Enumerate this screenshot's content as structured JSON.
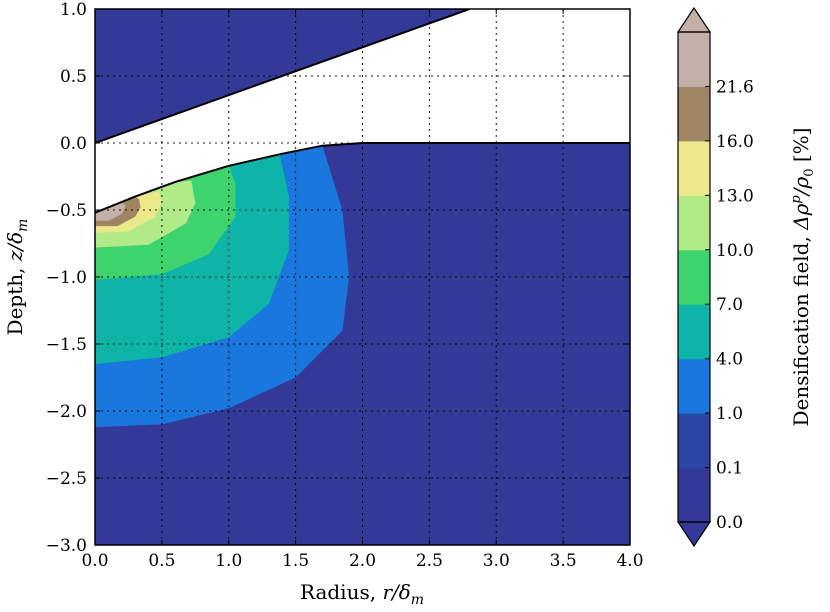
{
  "chart_data": {
    "type": "contour",
    "xlabel": "Radius, r/δm",
    "ylabel": "Depth, z/δm",
    "xlim": [
      0.0,
      4.0
    ],
    "ylim": [
      -3.0,
      1.0
    ],
    "xticks": [
      "0.0",
      "0.5",
      "1.0",
      "1.5",
      "2.0",
      "2.5",
      "3.0",
      "3.5",
      "4.0"
    ],
    "yticks": [
      "1.0",
      "0.5",
      "0.0",
      "−0.5",
      "−1.0",
      "−1.5",
      "−2.0",
      "−2.5",
      "−3.0"
    ],
    "grid": true,
    "colorbar": {
      "label": "Densification field, Δρp/ρ0 [%]",
      "levels": [
        "0.0",
        "0.1",
        "1.0",
        "4.0",
        "7.0",
        "10.0",
        "13.0",
        "16.0",
        "21.6"
      ],
      "colors": [
        "#343896",
        "#2b46a4",
        "#1977de",
        "#0eb4a8",
        "#3fd36d",
        "#b0eb88",
        "#ece98c",
        "#a08565",
        "#c2b0a9"
      ],
      "extend": "both"
    },
    "surface_profile": [
      [
        0.0,
        -0.52
      ],
      [
        0.3,
        -0.4
      ],
      [
        0.6,
        -0.29
      ],
      [
        1.0,
        -0.17
      ],
      [
        1.4,
        -0.08
      ],
      [
        1.7,
        -0.02
      ],
      [
        2.0,
        0.0
      ],
      [
        4.0,
        0.0
      ]
    ],
    "indenter_line": [
      [
        0.0,
        0.0
      ],
      [
        2.8,
        1.0
      ]
    ],
    "contours": [
      {
        "level": "1.0",
        "boundary": [
          [
            0.0,
            -2.12
          ],
          [
            0.5,
            -2.1
          ],
          [
            1.0,
            -1.98
          ],
          [
            1.5,
            -1.75
          ],
          [
            1.85,
            -1.4
          ],
          [
            1.9,
            -1.0
          ],
          [
            1.85,
            -0.5
          ],
          [
            1.7,
            -0.02
          ]
        ]
      },
      {
        "level": "4.0",
        "boundary": [
          [
            0.0,
            -1.65
          ],
          [
            0.5,
            -1.6
          ],
          [
            1.0,
            -1.45
          ],
          [
            1.3,
            -1.2
          ],
          [
            1.45,
            -0.8
          ],
          [
            1.45,
            -0.4
          ],
          [
            1.38,
            -0.08
          ]
        ]
      },
      {
        "level": "7.0",
        "boundary": [
          [
            0.0,
            -1.02
          ],
          [
            0.5,
            -0.98
          ],
          [
            0.85,
            -0.83
          ],
          [
            1.05,
            -0.55
          ],
          [
            1.05,
            -0.3
          ],
          [
            1.0,
            -0.17
          ]
        ]
      },
      {
        "level": "10.0",
        "boundary": [
          [
            0.0,
            -0.78
          ],
          [
            0.4,
            -0.76
          ],
          [
            0.68,
            -0.6
          ],
          [
            0.75,
            -0.45
          ],
          [
            0.72,
            -0.28
          ]
        ]
      },
      {
        "level": "13.0",
        "boundary": [
          [
            0.0,
            -0.67
          ],
          [
            0.25,
            -0.66
          ],
          [
            0.45,
            -0.55
          ],
          [
            0.5,
            -0.44
          ],
          [
            0.48,
            -0.36
          ]
        ]
      },
      {
        "level": "16.0",
        "boundary": [
          [
            0.0,
            -0.62
          ],
          [
            0.17,
            -0.62
          ],
          [
            0.3,
            -0.55
          ],
          [
            0.34,
            -0.48
          ],
          [
            0.33,
            -0.42
          ]
        ]
      },
      {
        "level": "21.6",
        "boundary": [
          [
            0.0,
            -0.58
          ],
          [
            0.1,
            -0.58
          ],
          [
            0.2,
            -0.53
          ],
          [
            0.23,
            -0.47
          ],
          [
            0.2,
            -0.44
          ]
        ]
      }
    ]
  }
}
